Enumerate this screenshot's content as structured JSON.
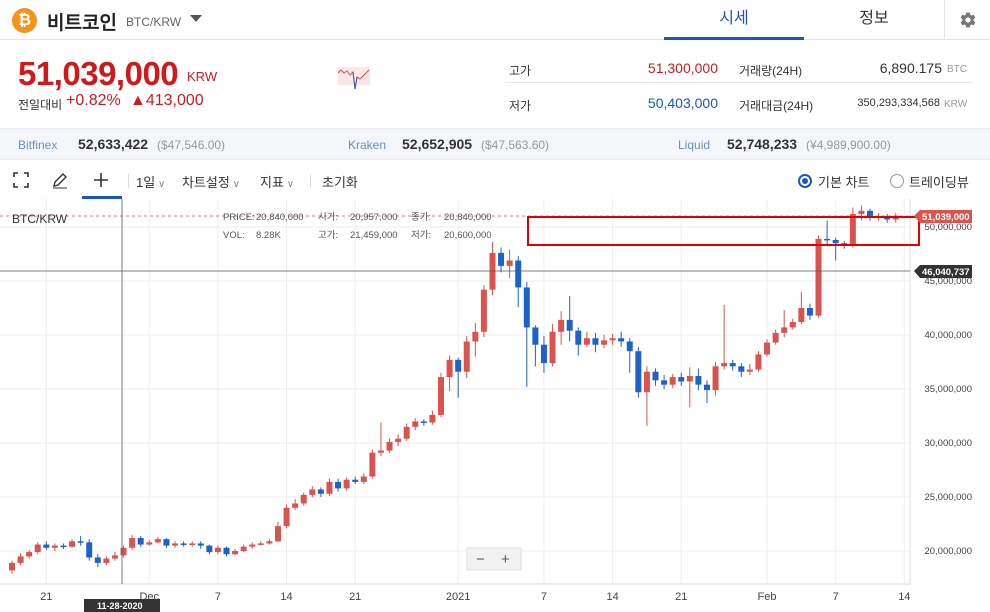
{
  "header": {
    "coin_glyph": "₿",
    "coin_name": "비트코인",
    "symbol": "BTC/KRW",
    "tabs": [
      {
        "label": "시세",
        "active": true
      },
      {
        "label": "정보",
        "active": false
      }
    ]
  },
  "summary": {
    "price": "51,039,000",
    "unit": "KRW",
    "change_label": "전일대비",
    "change_pct": "+0.82%",
    "change_amt": "▲413,000",
    "high_label": "고가",
    "high": "51,300,000",
    "low_label": "저가",
    "low": "50,403,000",
    "vol_label": "거래량(24H)",
    "vol": "6,890.175",
    "vol_unit": "BTC",
    "amt_label": "거래대금(24H)",
    "amt": "350,293,334,568",
    "amt_unit": "KRW"
  },
  "exchanges": [
    {
      "name": "Bitfinex",
      "price": "52,633,422",
      "usd": "($47,546.00)"
    },
    {
      "name": "Kraken",
      "price": "52,652,905",
      "usd": "($47,563.60)"
    },
    {
      "name": "Liquid",
      "price": "52,748,233",
      "usd": "(¥4,989,900.00)"
    }
  ],
  "toolbar": {
    "interval": "1일",
    "chart_settings": "차트설정",
    "indicators": "지표",
    "reset": "초기화",
    "basic_chart": "기본 차트",
    "tradingview": "트레이딩뷰"
  },
  "chart_info": {
    "symbol": "BTC/KRW",
    "price_label": "PRICE:",
    "price": "20,840,000",
    "open_label": "시가:",
    "open": "20,957,000",
    "close_label": "종가:",
    "close": "20,840,000",
    "vol_label": "VOL:",
    "vol": "8.28K",
    "high_label": "고가:",
    "high": "21,459,000",
    "low_label": "저가:",
    "low": "20,600,000",
    "crosshair_price": "46,040,737",
    "crosshair_date": "11-28-2020",
    "last_price": "51,039,000",
    "zoom_minus": "−",
    "zoom_plus": "+"
  },
  "colors": {
    "up": "#d9534f",
    "down": "#1d62c9",
    "accent": "#1a55c4",
    "highlight_box": "#e00000"
  },
  "chart_data": {
    "type": "candlestick",
    "y_ticks": [
      20000000,
      25000000,
      30000000,
      35000000,
      40000000,
      45000000,
      50000000
    ],
    "y_tick_labels": [
      "20,000,000",
      "25,000,000",
      "30,000,000",
      "35,000,000",
      "40,000,000",
      "45,000,000",
      "50,000,000"
    ],
    "x_tick_labels": [
      "21",
      "Dec",
      "7",
      "14",
      "21",
      "2021",
      "7",
      "14",
      "21",
      "Feb",
      "7",
      "14"
    ],
    "ylim": [
      18000000,
      53000000
    ],
    "candles": [
      [
        18200000,
        18900000,
        17900000,
        19100000
      ],
      [
        18900000,
        19500000,
        18700000,
        19800000
      ],
      [
        19500000,
        19900000,
        19300000,
        20100000
      ],
      [
        19900000,
        20600000,
        19700000,
        20800000
      ],
      [
        20600000,
        20300000,
        20100000,
        20900000
      ],
      [
        20300000,
        20500000,
        20000000,
        20700000
      ],
      [
        20500000,
        20400000,
        20200000,
        20700000
      ],
      [
        20400000,
        20900000,
        20300000,
        21100000
      ],
      [
        20900000,
        20800000,
        20500000,
        21400000
      ],
      [
        20800000,
        19400000,
        19100000,
        21100000
      ],
      [
        19400000,
        18900000,
        18500000,
        19700000
      ],
      [
        18900000,
        19300000,
        18700000,
        19500000
      ],
      [
        19300000,
        19600000,
        19100000,
        19900000
      ],
      [
        19600000,
        20300000,
        19400000,
        20500000
      ],
      [
        20300000,
        21200000,
        20100000,
        21500000
      ],
      [
        21200000,
        20600000,
        20400000,
        21400000
      ],
      [
        20600000,
        20800000,
        20500000,
        21000000
      ],
      [
        20800000,
        21100000,
        20700000,
        21300000
      ],
      [
        21100000,
        20500000,
        20300000,
        21200000
      ],
      [
        20500000,
        20700000,
        20300000,
        20900000
      ],
      [
        20700000,
        20600000,
        20400000,
        20900000
      ],
      [
        20600000,
        20700000,
        20400000,
        20900000
      ],
      [
        20700000,
        20500000,
        20200000,
        20900000
      ],
      [
        20500000,
        19900000,
        19700000,
        20600000
      ],
      [
        19900000,
        20300000,
        19700000,
        20500000
      ],
      [
        20300000,
        19700000,
        19500000,
        20400000
      ],
      [
        19700000,
        20000000,
        19600000,
        20200000
      ],
      [
        20000000,
        20400000,
        19900000,
        20600000
      ],
      [
        20400000,
        20600000,
        20200000,
        20800000
      ],
      [
        20600000,
        20700000,
        20500000,
        20900000
      ],
      [
        20700000,
        20900000,
        20600000,
        21100000
      ],
      [
        20900000,
        22300000,
        20800000,
        22700000
      ],
      [
        22300000,
        24000000,
        22100000,
        24300000
      ],
      [
        24000000,
        24400000,
        23800000,
        24800000
      ],
      [
        24400000,
        25200000,
        24200000,
        25400000
      ],
      [
        25200000,
        25700000,
        25000000,
        26000000
      ],
      [
        25700000,
        25300000,
        25000000,
        25900000
      ],
      [
        25300000,
        26400000,
        25100000,
        26700000
      ],
      [
        26400000,
        25800000,
        25500000,
        26700000
      ],
      [
        25800000,
        26600000,
        25600000,
        26800000
      ],
      [
        26600000,
        26400000,
        26200000,
        26900000
      ],
      [
        26400000,
        26900000,
        26200000,
        27200000
      ],
      [
        26900000,
        29100000,
        26700000,
        29400000
      ],
      [
        29100000,
        29300000,
        28800000,
        31900000
      ],
      [
        29300000,
        30100000,
        29100000,
        30400000
      ],
      [
        30100000,
        30400000,
        29700000,
        30800000
      ],
      [
        30400000,
        31500000,
        30200000,
        31800000
      ],
      [
        31500000,
        32000000,
        31200000,
        32300000
      ],
      [
        32000000,
        31900000,
        31600000,
        32200000
      ],
      [
        31900000,
        32600000,
        31700000,
        33000000
      ],
      [
        32600000,
        36100000,
        32400000,
        36500000
      ],
      [
        36100000,
        37700000,
        34800000,
        38100000
      ],
      [
        37700000,
        36600000,
        34200000,
        37900000
      ],
      [
        36600000,
        39400000,
        36000000,
        39900000
      ],
      [
        39400000,
        40300000,
        38000000,
        41100000
      ],
      [
        40300000,
        44200000,
        39800000,
        44600000
      ],
      [
        44200000,
        47600000,
        43700000,
        48600000
      ],
      [
        47600000,
        46400000,
        45800000,
        48100000
      ],
      [
        46400000,
        46900000,
        45300000,
        47900000
      ],
      [
        46900000,
        44400000,
        42600000,
        47300000
      ],
      [
        44400000,
        40700000,
        35200000,
        44900000
      ],
      [
        40700000,
        39100000,
        37100000,
        40900000
      ],
      [
        39100000,
        37400000,
        36500000,
        39900000
      ],
      [
        37400000,
        40300000,
        37100000,
        41000000
      ],
      [
        40300000,
        41400000,
        39100000,
        42200000
      ],
      [
        41400000,
        40400000,
        39400000,
        43600000
      ],
      [
        40400000,
        39100000,
        38100000,
        40700000
      ],
      [
        39100000,
        39700000,
        38900000,
        40300000
      ],
      [
        39700000,
        39100000,
        38400000,
        40200000
      ],
      [
        39100000,
        39500000,
        38800000,
        40000000
      ],
      [
        39500000,
        39700000,
        39100000,
        40100000
      ],
      [
        39700000,
        39400000,
        38900000,
        40300000
      ],
      [
        39400000,
        38500000,
        36500000,
        39700000
      ],
      [
        38500000,
        34700000,
        34200000,
        38900000
      ],
      [
        34700000,
        36600000,
        31600000,
        37100000
      ],
      [
        36600000,
        35800000,
        35300000,
        36900000
      ],
      [
        35800000,
        35400000,
        35000000,
        36300000
      ],
      [
        35400000,
        36100000,
        35100000,
        36400000
      ],
      [
        36100000,
        35700000,
        35300000,
        36500000
      ],
      [
        35700000,
        36200000,
        33300000,
        37000000
      ],
      [
        36200000,
        35400000,
        34900000,
        36900000
      ],
      [
        35400000,
        34900000,
        33700000,
        35800000
      ],
      [
        34900000,
        37100000,
        34400000,
        37500000
      ],
      [
        37100000,
        37400000,
        36800000,
        42800000
      ],
      [
        37400000,
        37100000,
        36700000,
        37700000
      ],
      [
        37100000,
        36600000,
        36100000,
        37400000
      ],
      [
        36600000,
        36800000,
        36300000,
        37300000
      ],
      [
        36800000,
        38200000,
        36600000,
        38500000
      ],
      [
        38200000,
        39300000,
        38000000,
        39600000
      ],
      [
        39300000,
        40200000,
        39100000,
        40500000
      ],
      [
        40200000,
        40700000,
        39800000,
        42300000
      ],
      [
        40700000,
        41200000,
        40500000,
        41500000
      ],
      [
        41200000,
        42500000,
        41000000,
        44000000
      ],
      [
        42500000,
        41800000,
        41400000,
        42900000
      ],
      [
        41800000,
        48900000,
        41600000,
        49200000
      ],
      [
        48900000,
        48800000,
        48300000,
        50600000
      ],
      [
        48800000,
        48500000,
        46900000,
        49000000
      ],
      [
        48500000,
        48300000,
        48000000,
        48700000
      ],
      [
        48300000,
        51200000,
        48100000,
        51800000
      ],
      [
        51200000,
        51500000,
        50600000,
        52000000
      ],
      [
        51500000,
        50900000,
        50600000,
        51700000
      ],
      [
        50900000,
        51000000,
        50600000,
        51300000
      ],
      [
        51000000,
        50700000,
        50400000,
        51200000
      ],
      [
        50700000,
        51039000,
        50400000,
        51300000
      ]
    ]
  }
}
